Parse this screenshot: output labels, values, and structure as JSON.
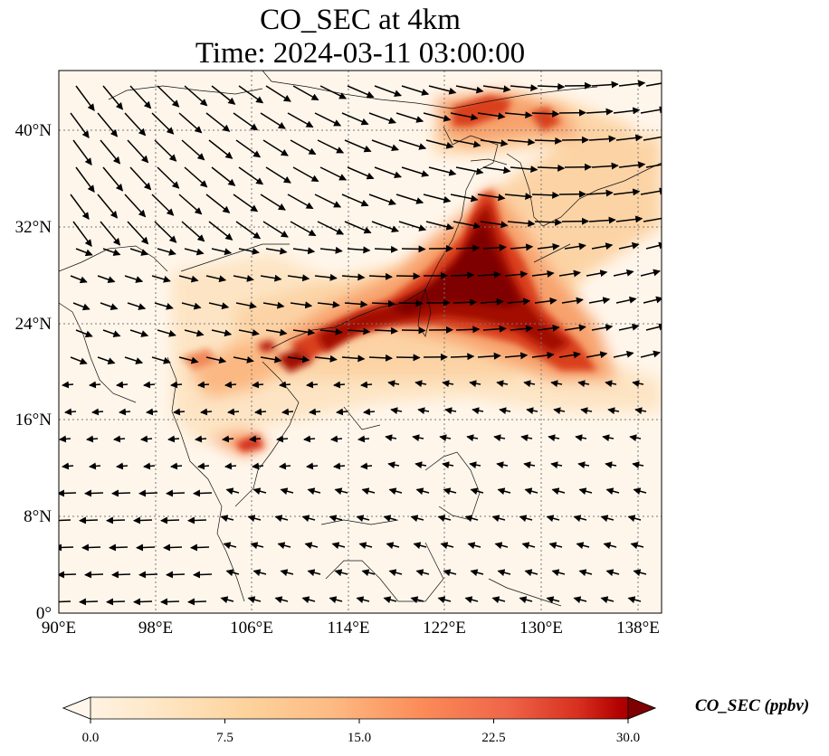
{
  "title": {
    "line1": "CO_SEC at 4km",
    "line2": "Time: 2024-03-11 03:00:00"
  },
  "map": {
    "variable": "CO_SEC",
    "level": "4km",
    "extent": {
      "lon": [
        90,
        140
      ],
      "lat": [
        0,
        45
      ]
    },
    "lon_ticks": [
      "90°E",
      "98°E",
      "106°E",
      "114°E",
      "122°E",
      "130°E",
      "138°E"
    ],
    "lat_ticks": [
      "0°",
      "8°N",
      "16°N",
      "24°N",
      "32°N",
      "40°N"
    ],
    "gridlines": "dotted",
    "overlays": [
      "coastlines",
      "country-borders",
      "wind-vectors"
    ],
    "colormap": "OrRd",
    "colors": {
      "low": "#fff7ec",
      "mid": "#fc8d59",
      "high": "#7f0000"
    }
  },
  "colorbar": {
    "label": "CO_SEC (ppbv)",
    "min": 0.0,
    "max": 30.0,
    "ticks": [
      "0.0",
      "7.5",
      "15.0",
      "22.5",
      "30.0"
    ],
    "extend": "both"
  }
}
